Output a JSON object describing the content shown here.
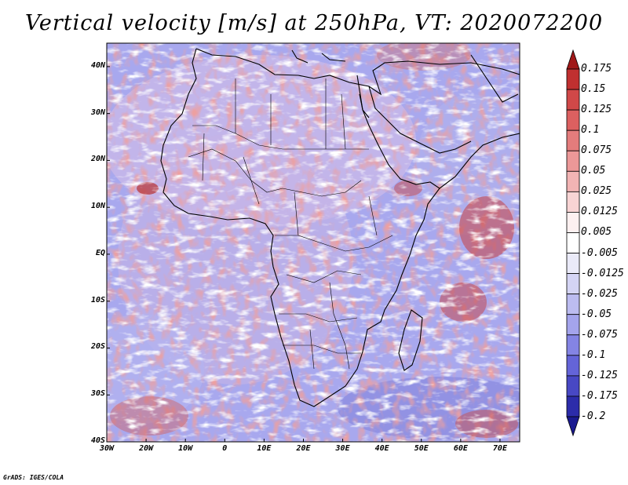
{
  "title": "Vertical velocity [m/s] at 250hPa, VT: 2020072200",
  "credit": "GrADS: IGES/COLA",
  "map": {
    "lon_range": [
      -30,
      75
    ],
    "lat_range": [
      -40,
      45
    ],
    "lat_ticks": [
      "40N",
      "30N",
      "20N",
      "10N",
      "EQ",
      "10S",
      "20S",
      "30S",
      "40S"
    ],
    "lon_ticks": [
      "30W",
      "20W",
      "10W",
      "0",
      "10E",
      "20E",
      "30E",
      "40E",
      "50E",
      "60E",
      "70E"
    ]
  },
  "colorbar": {
    "labels": [
      "0.175",
      "0.15",
      "0.125",
      "0.1",
      "0.075",
      "0.05",
      "0.025",
      "0.0125",
      "0.005",
      "-0.005",
      "-0.0125",
      "-0.025",
      "-0.05",
      "-0.075",
      "-0.1",
      "-0.125",
      "-0.175",
      "-0.2"
    ],
    "colors": [
      "#a01818",
      "#c03030",
      "#d04848",
      "#dc6060",
      "#e47c7c",
      "#ec9898",
      "#f2b4b4",
      "#f8d4d4",
      "#fdf0f0",
      "#ffffff",
      "#eaeaf8",
      "#d4d4f4",
      "#bcbcf0",
      "#a4a4ec",
      "#8484e4",
      "#6464d8",
      "#4848c4",
      "#2c2caa",
      "#1a1a90"
    ]
  }
}
